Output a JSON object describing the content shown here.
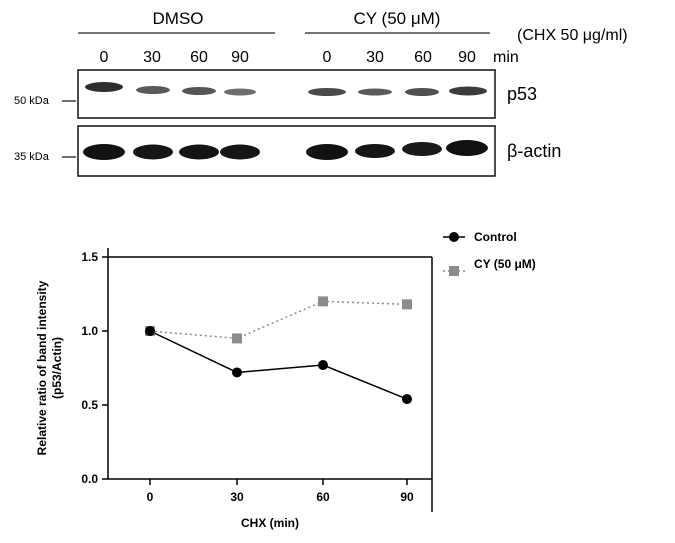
{
  "blot": {
    "groups": [
      {
        "label": "DMSO"
      },
      {
        "label": "CY (50 μM)"
      }
    ],
    "treatment_label": "(CHX  50 μg/ml)",
    "timepoints": [
      "0",
      "30",
      "60",
      "90"
    ],
    "time_unit": "min",
    "panels": [
      {
        "label": "p53",
        "marker": "50 kDa"
      },
      {
        "label": "β-actin",
        "marker": "35 kDa"
      }
    ]
  },
  "chart_data": {
    "type": "line",
    "x": [
      0,
      30,
      60,
      90
    ],
    "xlabel": "CHX (min)",
    "ylabel_line1": "Relative ratio of band intensity",
    "ylabel_line2": "(p53/Actin)",
    "x_ticks": [
      "0",
      "30",
      "60",
      "90"
    ],
    "y_ticks": [
      "0.0",
      "0.5",
      "1.0",
      "1.5"
    ],
    "ylim": [
      0,
      1.5
    ],
    "legend_placement": "top-right",
    "series": [
      {
        "name": "Control",
        "values": [
          1.0,
          0.72,
          0.77,
          0.54
        ],
        "color": "#000000",
        "marker": "circle",
        "line": "solid"
      },
      {
        "name": "CY (50 μM)",
        "values": [
          1.0,
          0.95,
          1.2,
          1.18
        ],
        "color": "#8c8c8c",
        "marker": "square",
        "line": "dotted"
      }
    ]
  }
}
